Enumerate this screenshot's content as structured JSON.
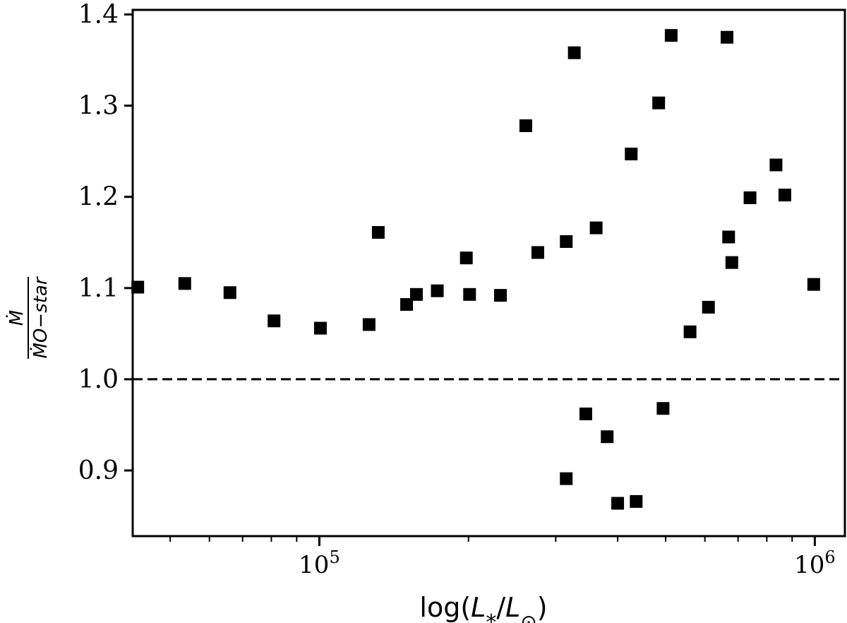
{
  "chart_data": {
    "type": "scatter",
    "xscale": "log",
    "xlabel": "log(L*/L⊙)",
    "ylabel_numerator": "Ṁ",
    "ylabel_denominator": "ṀO−star",
    "xlim": [
      42000,
      1150000
    ],
    "ylim": [
      0.828,
      1.405
    ],
    "xticks": [
      {
        "value": 100000,
        "base": "10",
        "exp": "5"
      },
      {
        "value": 1000000,
        "base": "10",
        "exp": "6"
      }
    ],
    "yticks": [
      0.9,
      1.0,
      1.1,
      1.2,
      1.3,
      1.4
    ],
    "ytick_labels": [
      "0.9",
      "1.0",
      "1.1",
      "1.2",
      "1.3",
      "1.4"
    ],
    "reference_line": {
      "y": 1.0,
      "style": "dashed"
    },
    "marker": "square",
    "marker_color": "#000000",
    "points": [
      {
        "x": 43000,
        "y": 1.101
      },
      {
        "x": 53500,
        "y": 1.105
      },
      {
        "x": 66000,
        "y": 1.095
      },
      {
        "x": 81000,
        "y": 1.064
      },
      {
        "x": 100500,
        "y": 1.056
      },
      {
        "x": 126000,
        "y": 1.06
      },
      {
        "x": 131500,
        "y": 1.161
      },
      {
        "x": 150000,
        "y": 1.082
      },
      {
        "x": 157000,
        "y": 1.093
      },
      {
        "x": 173000,
        "y": 1.097
      },
      {
        "x": 198000,
        "y": 1.133
      },
      {
        "x": 201000,
        "y": 1.093
      },
      {
        "x": 232000,
        "y": 1.092
      },
      {
        "x": 261000,
        "y": 1.278
      },
      {
        "x": 276000,
        "y": 1.139
      },
      {
        "x": 315000,
        "y": 1.151
      },
      {
        "x": 315000,
        "y": 0.891
      },
      {
        "x": 327000,
        "y": 1.358
      },
      {
        "x": 345000,
        "y": 0.962
      },
      {
        "x": 362000,
        "y": 1.166
      },
      {
        "x": 381000,
        "y": 0.937
      },
      {
        "x": 400000,
        "y": 0.864
      },
      {
        "x": 426000,
        "y": 1.247
      },
      {
        "x": 436000,
        "y": 0.866
      },
      {
        "x": 484000,
        "y": 1.303
      },
      {
        "x": 494000,
        "y": 0.968
      },
      {
        "x": 513000,
        "y": 1.377
      },
      {
        "x": 560000,
        "y": 1.052
      },
      {
        "x": 610000,
        "y": 1.079
      },
      {
        "x": 665000,
        "y": 1.375
      },
      {
        "x": 670000,
        "y": 1.156
      },
      {
        "x": 680000,
        "y": 1.128
      },
      {
        "x": 740000,
        "y": 1.199
      },
      {
        "x": 835000,
        "y": 1.235
      },
      {
        "x": 870000,
        "y": 1.202
      },
      {
        "x": 995000,
        "y": 1.104
      }
    ]
  }
}
